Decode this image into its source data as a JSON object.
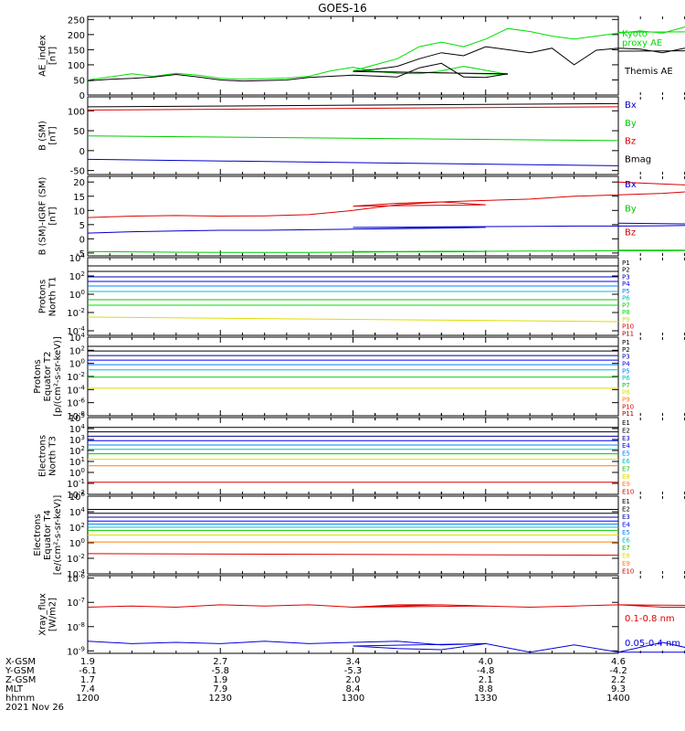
{
  "title": "GOES-16",
  "chart_data": [
    {
      "type": "line",
      "ylabel": [
        "AE_index",
        "[nT]"
      ],
      "ylim": [
        0,
        260
      ],
      "yticks": [
        {
          "v": 0,
          "t": "0"
        },
        {
          "v": 50,
          "t": "50"
        },
        {
          "v": 100,
          "t": "100"
        },
        {
          "v": 150,
          "t": "150"
        },
        {
          "v": 200,
          "t": "200"
        },
        {
          "v": 250,
          "t": "250"
        }
      ],
      "x": [
        1200,
        1205,
        1210,
        1215,
        1220,
        1225,
        1230,
        1235,
        1240,
        1245,
        1250,
        1255,
        1260,
        1265,
        1270,
        1275,
        1280,
        1285,
        1290,
        1295,
        1300,
        1305,
        1310,
        1315,
        1320,
        1325,
        1330,
        1335,
        1340,
        1345,
        1350,
        1355,
        1360,
        1365,
        1370,
        1375,
        1380,
        1385,
        1390,
        1395,
        1400
      ],
      "series": [
        {
          "name": "Kyoto proxy AE",
          "color": "#00dd00",
          "values": [
            50,
            60,
            70,
            62,
            72,
            66,
            55,
            52,
            54,
            56,
            62,
            80,
            92,
            78,
            72,
            70,
            80,
            95,
            82,
            68,
            80,
            100,
            120,
            160,
            175,
            160,
            185,
            220,
            210,
            195,
            185,
            195,
            205,
            212,
            205,
            225,
            240,
            235,
            222,
            210,
            208
          ]
        },
        {
          "name": "Themis AE",
          "color": "#000000",
          "values": [
            47,
            52,
            55,
            60,
            68,
            60,
            50,
            46,
            48,
            50,
            58,
            62,
            66,
            63,
            60,
            90,
            105,
            60,
            58,
            70,
            78,
            85,
            95,
            120,
            140,
            130,
            160,
            150,
            140,
            155,
            100,
            148,
            155,
            152,
            140,
            155,
            162,
            155,
            150,
            148,
            145
          ]
        }
      ],
      "legend": [
        "Kyoto proxy AE",
        "Themis AE"
      ]
    },
    {
      "type": "line",
      "ylabel": [
        "B (SM)",
        "[nT]"
      ],
      "ylim": [
        -60,
        135
      ],
      "yticks": [
        {
          "v": -50,
          "t": "-50"
        },
        {
          "v": 0,
          "t": "0"
        },
        {
          "v": 50,
          "t": "50"
        },
        {
          "v": 100,
          "t": "100"
        }
      ],
      "x": [
        1200,
        1400
      ],
      "series": [
        {
          "name": "Bx",
          "color": "#0000cc",
          "values": [
            -22,
            -38
          ]
        },
        {
          "name": "By",
          "color": "#00cc00",
          "values": [
            37,
            25
          ]
        },
        {
          "name": "Bz",
          "color": "#dd0000",
          "values": [
            102,
            110
          ]
        },
        {
          "name": "Bmag",
          "color": "#000000",
          "values": [
            110,
            118
          ]
        }
      ],
      "legend": [
        "Bx",
        "By",
        "Bz",
        "Bmag"
      ]
    },
    {
      "type": "line",
      "ylabel": [
        "B (SM)-IGRF (SM)",
        "[nT]"
      ],
      "ylim": [
        -6,
        22
      ],
      "yticks": [
        {
          "v": -5,
          "t": "-5"
        },
        {
          "v": 0,
          "t": "0"
        },
        {
          "v": 5,
          "t": "5"
        },
        {
          "v": 10,
          "t": "10"
        },
        {
          "v": 15,
          "t": "15"
        },
        {
          "v": 20,
          "t": "20"
        }
      ],
      "x": [
        1200,
        1210,
        1220,
        1230,
        1240,
        1250,
        1260,
        1270,
        1280,
        1290,
        1300,
        1310,
        1320,
        1330,
        1340,
        1350,
        1360,
        1370,
        1380,
        1390,
        1400
      ],
      "series": [
        {
          "name": "Bx",
          "color": "#0000cc",
          "values": [
            2,
            2.5,
            2.8,
            3,
            3,
            3.2,
            3.4,
            3.6,
            3.8,
            4,
            4,
            4.1,
            4.2,
            4.3,
            4.4,
            4.5,
            4.5,
            4.6,
            4.8,
            5,
            5.5
          ]
        },
        {
          "name": "By",
          "color": "#00cc00",
          "values": [
            -4.5,
            -4.6,
            -4.7,
            -4.8,
            -4.8,
            -4.8,
            -4.7,
            -4.6,
            -4.6,
            -4.5,
            -4.5,
            -4.5,
            -4.4,
            -4.4,
            -4.3,
            -4.3,
            -4.2,
            -4.2,
            -4.1,
            -4.0,
            -4.0
          ]
        },
        {
          "name": "Bz",
          "color": "#dd0000",
          "values": [
            7.5,
            8,
            8.2,
            8,
            8.1,
            8.5,
            10,
            12,
            13,
            12,
            11.5,
            12.5,
            13,
            13.5,
            14,
            15,
            15.5,
            16,
            17,
            18,
            20
          ]
        }
      ],
      "legend": [
        "Bx",
        "By",
        "Bz"
      ]
    },
    {
      "type": "line",
      "ylabel": [
        "Protons",
        "North T1"
      ],
      "ylog": true,
      "ylim": [
        -4.5,
        4
      ],
      "yticks": [
        {
          "v": 4,
          "t": "10^4"
        },
        {
          "v": 2,
          "t": "10^2"
        },
        {
          "v": 0,
          "t": "10^0"
        },
        {
          "v": -2,
          "t": "10^-2"
        },
        {
          "v": -4,
          "t": "10^-4"
        }
      ],
      "x": [
        1200,
        1400
      ],
      "series": [
        {
          "name": "P1",
          "color": "#000000",
          "values": [
            3.1,
            3.1
          ]
        },
        {
          "name": "P2",
          "color": "#000000",
          "values": [
            2.5,
            2.5
          ]
        },
        {
          "name": "P3",
          "color": "#0000aa",
          "values": [
            1.9,
            1.9
          ]
        },
        {
          "name": "P4",
          "color": "#0000ff",
          "values": [
            1.4,
            1.4
          ]
        },
        {
          "name": "P5",
          "color": "#0080ff",
          "values": [
            0.9,
            0.9
          ]
        },
        {
          "name": "P6",
          "color": "#00c0c0",
          "values": [
            0.3,
            0.3
          ]
        },
        {
          "name": "P7",
          "color": "#00cc00",
          "values": [
            -0.6,
            -0.6
          ]
        },
        {
          "name": "P8",
          "color": "#00dd00",
          "values": [
            -1.2,
            -1.2
          ]
        },
        {
          "name": "P9",
          "color": "#dddd00",
          "values": [
            -2.5,
            -3.0
          ]
        },
        {
          "name": "P10",
          "color": "#dd0000",
          "values": [
            null,
            null
          ]
        },
        {
          "name": "P11",
          "color": "#aa0000",
          "values": [
            null,
            null
          ]
        }
      ],
      "legend": [
        "P1",
        "P2",
        "P3",
        "P4",
        "P5",
        "P6",
        "P7",
        "P8",
        "P9",
        "P10",
        "P11"
      ]
    },
    {
      "type": "line",
      "ylabel": [
        "Protons",
        "Equator T2",
        "[p/(cm²-s-sr-keV)]"
      ],
      "ylog": true,
      "ylim": [
        -8,
        4
      ],
      "yticks": [
        {
          "v": 4,
          "t": "10^4"
        },
        {
          "v": 2,
          "t": "10^2"
        },
        {
          "v": 0,
          "t": "10^0"
        },
        {
          "v": -2,
          "t": "10^-2"
        },
        {
          "v": -4,
          "t": "10^-4"
        },
        {
          "v": -6,
          "t": "10^-6"
        },
        {
          "v": -8,
          "t": "10^-8"
        }
      ],
      "x": [
        1200,
        1400
      ],
      "series": [
        {
          "name": "P1",
          "color": "#000000",
          "values": [
            2.6,
            2.6
          ]
        },
        {
          "name": "P2",
          "color": "#000000",
          "values": [
            1.9,
            1.9
          ]
        },
        {
          "name": "P3",
          "color": "#0000aa",
          "values": [
            1.2,
            1.2
          ]
        },
        {
          "name": "P4",
          "color": "#0000ff",
          "values": [
            0.5,
            0.5
          ]
        },
        {
          "name": "P5",
          "color": "#0080ff",
          "values": [
            -0.2,
            -0.2
          ]
        },
        {
          "name": "P6",
          "color": "#00c0c0",
          "values": [
            -1.0,
            -1.0
          ]
        },
        {
          "name": "P7",
          "color": "#00cc00",
          "values": [
            -2.1,
            -2.1
          ]
        },
        {
          "name": "P8",
          "color": "#dddd00",
          "values": [
            -3.8,
            -3.8
          ]
        }
      ],
      "legend": [
        "P1",
        "P2",
        "P3",
        "P4",
        "P5",
        "P6",
        "P7",
        "P8",
        "P9",
        "P10",
        "P11"
      ]
    },
    {
      "type": "line",
      "ylabel": [
        "Electrons",
        "North T3"
      ],
      "ylog": true,
      "ylim": [
        -2,
        5
      ],
      "yticks": [
        {
          "v": 5,
          "t": "10^5"
        },
        {
          "v": 4,
          "t": "10^4"
        },
        {
          "v": 3,
          "t": "10^3"
        },
        {
          "v": 2,
          "t": "10^2"
        },
        {
          "v": 1,
          "t": "10^1"
        },
        {
          "v": 0,
          "t": "10^0"
        },
        {
          "v": -1,
          "t": "10^-1"
        },
        {
          "v": -2,
          "t": "10^-2"
        }
      ],
      "x": [
        1200,
        1400
      ],
      "series": [
        {
          "name": "E1",
          "color": "#000000",
          "values": [
            4.1,
            4.1
          ]
        },
        {
          "name": "E2",
          "color": "#000000",
          "values": [
            3.7,
            3.7
          ]
        },
        {
          "name": "E3",
          "color": "#0000aa",
          "values": [
            3.3,
            3.3
          ]
        },
        {
          "name": "E4",
          "color": "#0000ff",
          "values": [
            2.9,
            2.9
          ]
        },
        {
          "name": "E5",
          "color": "#0080ff",
          "values": [
            2.5,
            2.5
          ]
        },
        {
          "name": "E6",
          "color": "#00c0c0",
          "values": [
            2.1,
            2.1
          ]
        },
        {
          "name": "E7",
          "color": "#00cc00",
          "values": [
            1.7,
            1.7
          ]
        },
        {
          "name": "E8",
          "color": "#dddd00",
          "values": [
            1.2,
            1.2
          ]
        },
        {
          "name": "E9",
          "color": "#ff8000",
          "values": [
            0.6,
            0.6
          ]
        },
        {
          "name": "E10",
          "color": "#dd0000",
          "values": [
            -0.9,
            -0.9
          ]
        }
      ],
      "legend": [
        "E1",
        "E2",
        "E3",
        "E4",
        "E5",
        "E6",
        "E7",
        "E8",
        "E9",
        "E10"
      ]
    },
    {
      "type": "line",
      "ylabel": [
        "Electrons",
        "Equator T4",
        "[e/(cm²-s-sr-keV)]"
      ],
      "ylog": true,
      "ylim": [
        -4,
        6
      ],
      "yticks": [
        {
          "v": 6,
          "t": "10^6"
        },
        {
          "v": 4,
          "t": "10^4"
        },
        {
          "v": 2,
          "t": "10^2"
        },
        {
          "v": 0,
          "t": "10^0"
        },
        {
          "v": -2,
          "t": "10^-2"
        },
        {
          "v": -4,
          "t": "10^-4"
        }
      ],
      "x": [
        1200,
        1400
      ],
      "series": [
        {
          "name": "E1",
          "color": "#000000",
          "values": [
            4.3,
            4.3
          ]
        },
        {
          "name": "E2",
          "color": "#000000",
          "values": [
            3.8,
            3.8
          ]
        },
        {
          "name": "E3",
          "color": "#0000aa",
          "values": [
            3.3,
            3.3
          ]
        },
        {
          "name": "E4",
          "color": "#0000ff",
          "values": [
            2.8,
            2.8
          ]
        },
        {
          "name": "E5",
          "color": "#0080ff",
          "values": [
            2.4,
            2.4
          ]
        },
        {
          "name": "E6",
          "color": "#00c0c0",
          "values": [
            2.0,
            2.0
          ]
        },
        {
          "name": "E7",
          "color": "#00cc00",
          "values": [
            1.6,
            1.6
          ]
        },
        {
          "name": "E8",
          "color": "#dddd00",
          "values": [
            1.0,
            1.0
          ]
        },
        {
          "name": "E9",
          "color": "#ff8000",
          "values": [
            0.1,
            0.1
          ]
        },
        {
          "name": "E10",
          "color": "#dd0000",
          "values": [
            -1.4,
            -1.6
          ]
        }
      ],
      "legend": [
        "E1",
        "E2",
        "E3",
        "E4",
        "E5",
        "E6",
        "E7",
        "E8",
        "E9",
        "E10"
      ]
    },
    {
      "type": "line",
      "ylabel": [
        "Xray_flux",
        "[W/m2]"
      ],
      "ylog": true,
      "ylim": [
        -9.1,
        -5.9
      ],
      "yticks": [
        {
          "v": -6,
          "t": "10^-6"
        },
        {
          "v": -7,
          "t": "10^-7"
        },
        {
          "v": -8,
          "t": "10^-8"
        },
        {
          "v": -9,
          "t": "10^-9"
        }
      ],
      "x": [
        1200,
        1210,
        1220,
        1230,
        1240,
        1250,
        1260,
        1270,
        1280,
        1290,
        1300,
        1310,
        1320,
        1330,
        1340,
        1350,
        1360,
        1370,
        1380,
        1390,
        1400
      ],
      "series": [
        {
          "name": "0.1-0.8 nm",
          "color": "#dd0000",
          "values": [
            -7.2,
            -7.15,
            -7.2,
            -7.1,
            -7.15,
            -7.1,
            -7.2,
            -7.15,
            -7.1,
            -7.15,
            -7.2,
            -7.1,
            -7.1,
            -7.15,
            -7.2,
            -7.15,
            -7.1,
            -7.2,
            -7.2,
            -7.15,
            -7.1
          ]
        },
        {
          "name": "0.05-0.4 nm",
          "color": "#0000dd",
          "values": [
            -8.6,
            -8.7,
            -8.65,
            -8.7,
            -8.6,
            -8.7,
            -8.65,
            -8.6,
            -8.75,
            -8.7,
            -8.8,
            -8.9,
            -8.95,
            -8.7,
            -9.05,
            -8.75,
            -9.05,
            -8.65,
            -9.05,
            -9.05,
            -9.05
          ]
        }
      ],
      "legend": [
        "0.1-0.8 nm",
        "0.05-0.4 nm"
      ]
    }
  ],
  "bottom_rows": [
    {
      "label": "X-GSM",
      "values": [
        "1.9",
        "2.7",
        "3.4",
        "4.0",
        "4.6"
      ]
    },
    {
      "label": "Y-GSM",
      "values": [
        "-6.1",
        "-5.8",
        "-5.3",
        "-4.8",
        "-4.2"
      ]
    },
    {
      "label": "Z-GSM",
      "values": [
        "1.7",
        "1.9",
        "2.0",
        "2.1",
        "2.2"
      ]
    },
    {
      "label": "MLT",
      "values": [
        "7.4",
        "7.9",
        "8.4",
        "8.8",
        "9.3"
      ]
    },
    {
      "label": "hhmm",
      "values": [
        "1200",
        "1230",
        "1300",
        "1330",
        "1400"
      ]
    }
  ],
  "date_label": "2021 Nov 26",
  "x_tick_times": [
    1200,
    1230,
    1300,
    1330,
    1400
  ],
  "x_minor_times": [
    1205,
    1210,
    1215,
    1220,
    1225,
    1235,
    1240,
    1245,
    1250,
    1255,
    1265,
    1270,
    1275,
    1280,
    1285,
    1295,
    1300,
    1305,
    1310,
    1315,
    1320,
    1325,
    1335,
    1340,
    1345,
    1350,
    1355,
    1365,
    1370,
    1375,
    1380,
    1385,
    1390,
    1395
  ]
}
